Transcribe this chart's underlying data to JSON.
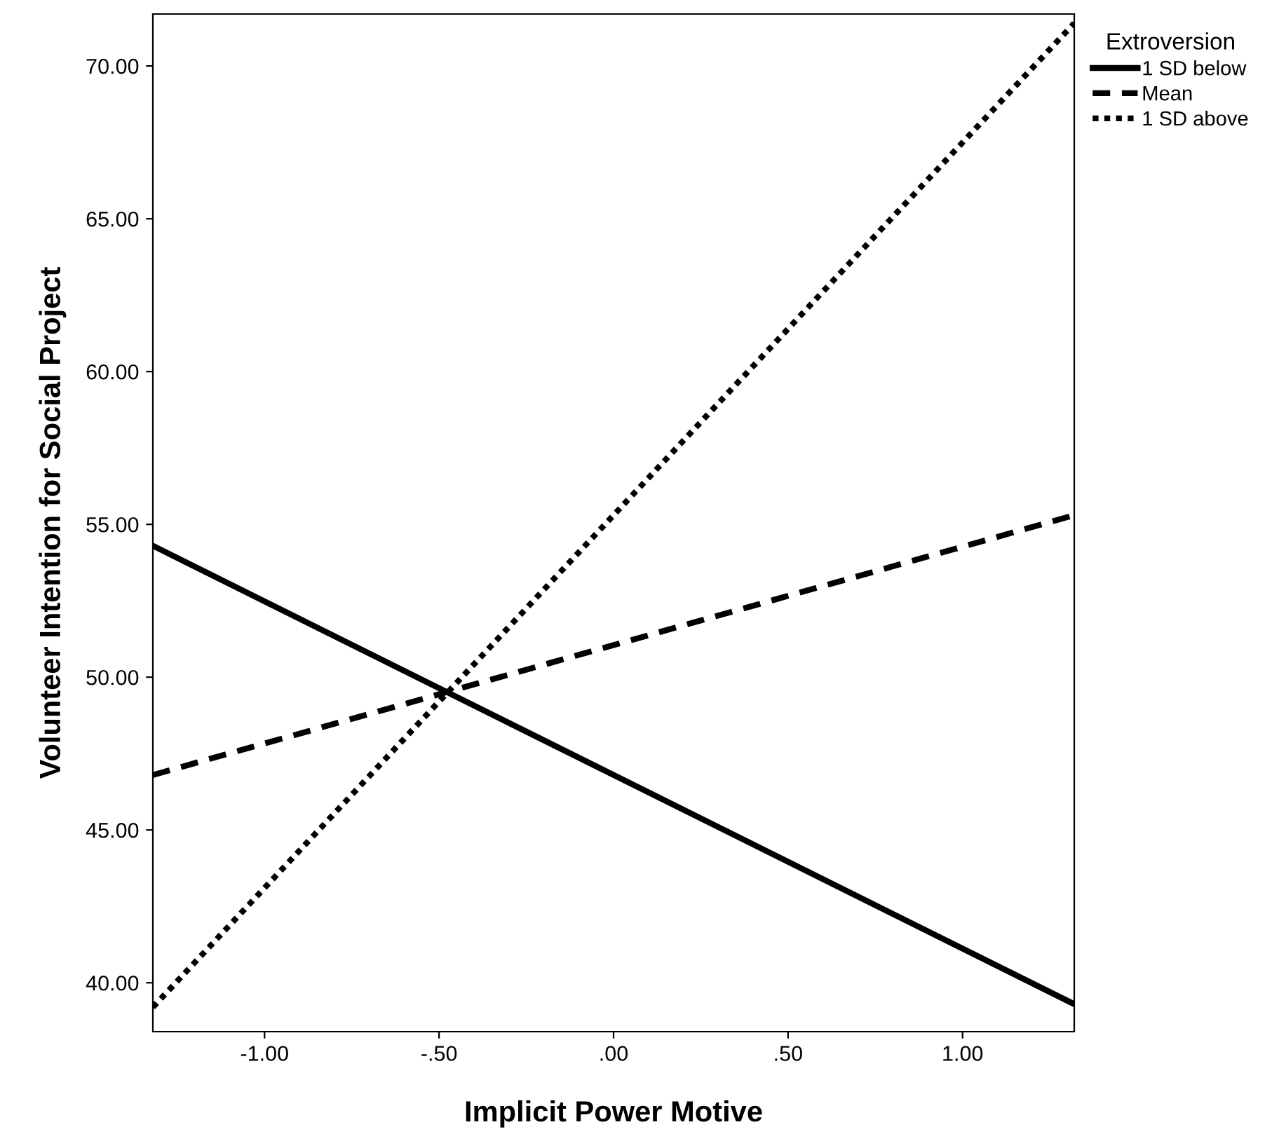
{
  "chart_data": {
    "type": "line",
    "xlabel": "Implicit Power Motive",
    "ylabel": "Volunteer Intention for Social Project",
    "legend_title": "Extroversion",
    "legend": "top right",
    "grid": false,
    "marker": "none",
    "xlim": [
      -1.32,
      1.32
    ],
    "ylim": [
      38.4,
      71.7
    ],
    "xticks": [
      {
        "value": -1,
        "label": "-1.00"
      },
      {
        "value": -0.5,
        "label": "-.50"
      },
      {
        "value": 0,
        "label": ".00"
      },
      {
        "value": 0.5,
        "label": ".50"
      },
      {
        "value": 1,
        "label": "1.00"
      }
    ],
    "yticks": [
      {
        "value": 40,
        "label": "40.00"
      },
      {
        "value": 45,
        "label": "45.00"
      },
      {
        "value": 50,
        "label": "50.00"
      },
      {
        "value": 55,
        "label": "55.00"
      },
      {
        "value": 60,
        "label": "60.00"
      },
      {
        "value": 65,
        "label": "65.00"
      },
      {
        "value": 70,
        "label": "70.00"
      }
    ],
    "x": [
      -1.32,
      1.32
    ],
    "series": [
      {
        "name": "1 SD below",
        "color": "#000000",
        "line_style": "solid",
        "values": [
          54.3,
          39.3
        ]
      },
      {
        "name": "Mean",
        "color": "#000000",
        "line_style": "dashed",
        "values": [
          46.8,
          55.3
        ]
      },
      {
        "name": "1 SD above",
        "color": "#000000",
        "line_style": "dotted",
        "values": [
          39.2,
          71.4
        ]
      }
    ]
  }
}
